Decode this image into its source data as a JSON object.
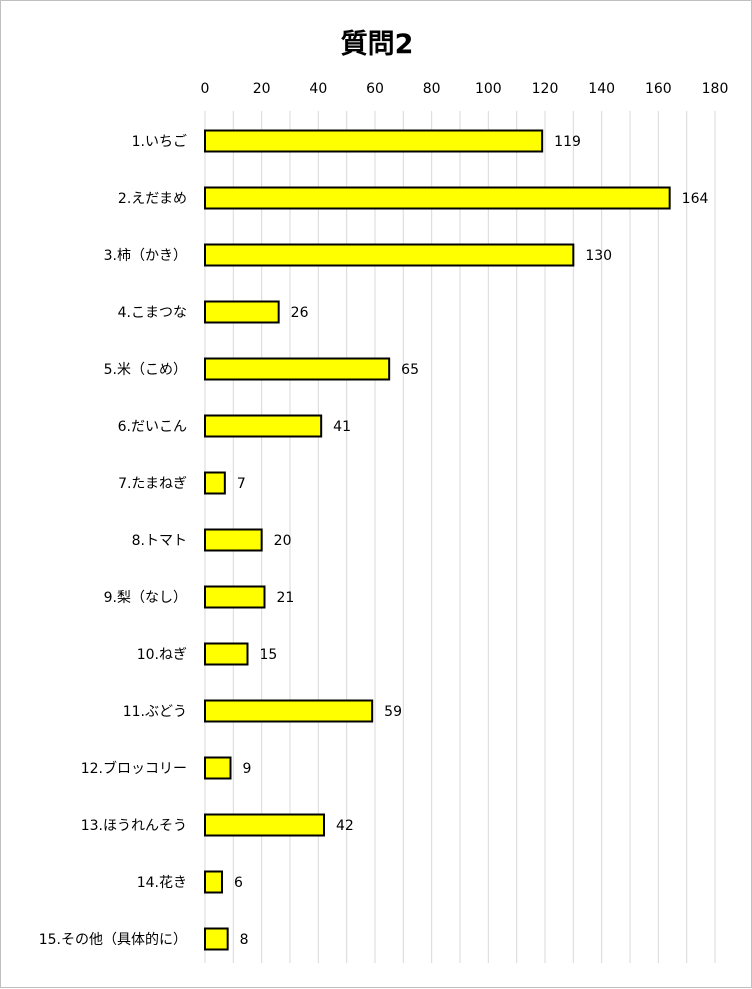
{
  "chart_data": {
    "type": "bar",
    "orientation": "horizontal",
    "title": "質問2",
    "categories": [
      "1.いちご",
      "2.えだまめ",
      "3.柿（かき）",
      "4.こまつな",
      "5.米（こめ）",
      "6.だいこん",
      "7.たまねぎ",
      "8.トマト",
      "9.梨（なし）",
      "10.ねぎ",
      "11.ぶどう",
      "12.ブロッコリー",
      "13.ほうれんそう",
      "14.花き",
      "15.その他（具体的に）"
    ],
    "values": [
      119,
      164,
      130,
      26,
      65,
      41,
      7,
      20,
      21,
      15,
      59,
      9,
      42,
      6,
      8
    ],
    "xlim": [
      0,
      180
    ],
    "xticks": [
      0,
      20,
      40,
      60,
      80,
      100,
      120,
      140,
      160,
      180
    ],
    "axis_position": "top",
    "grid": true,
    "data_labels": true,
    "bar_color": "#FFFF00",
    "bar_edge_color": "#000000",
    "grid_color": "#D9D9D9"
  }
}
